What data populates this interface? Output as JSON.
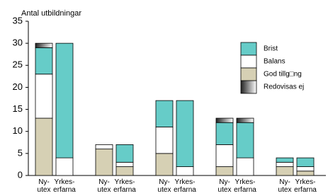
{
  "chart_data": {
    "type": "stacked_bar",
    "y_label": "Antal utbildningar",
    "categories": [
      "Ny-\nutex",
      "Yrkes-\nerfarna",
      "Ny-\nutex",
      "Yrkes-\nerfarna",
      "Ny-\nutex",
      "Yrkes-\nerfarna",
      "Ny-\nutex",
      "Yrkes-\nerfarna",
      "Ny-\nutex",
      "Yrkes-\nerfarna"
    ],
    "series": [
      {
        "name": "God tillg□ng",
        "color": "#d6d0b4",
        "values": [
          13,
          0,
          6,
          2,
          5,
          0,
          2,
          0,
          2,
          1
        ]
      },
      {
        "name": "Balans",
        "color": "#ffffff",
        "values": [
          10,
          4,
          1,
          1,
          6,
          2,
          5,
          4,
          1,
          1
        ]
      },
      {
        "name": "Brist",
        "color": "#66ccc8",
        "values": [
          6,
          26,
          0,
          4,
          6,
          15,
          5,
          8,
          1,
          2
        ]
      },
      {
        "name": "Redovisas ej",
        "color": "#222222",
        "values": [
          1,
          0,
          0,
          0,
          0,
          0,
          1,
          1,
          0,
          0
        ]
      }
    ],
    "ylim": [
      0,
      35
    ],
    "yticks": [
      0,
      5,
      10,
      15,
      20,
      25,
      30,
      35
    ],
    "legend": "right",
    "grid": false
  }
}
